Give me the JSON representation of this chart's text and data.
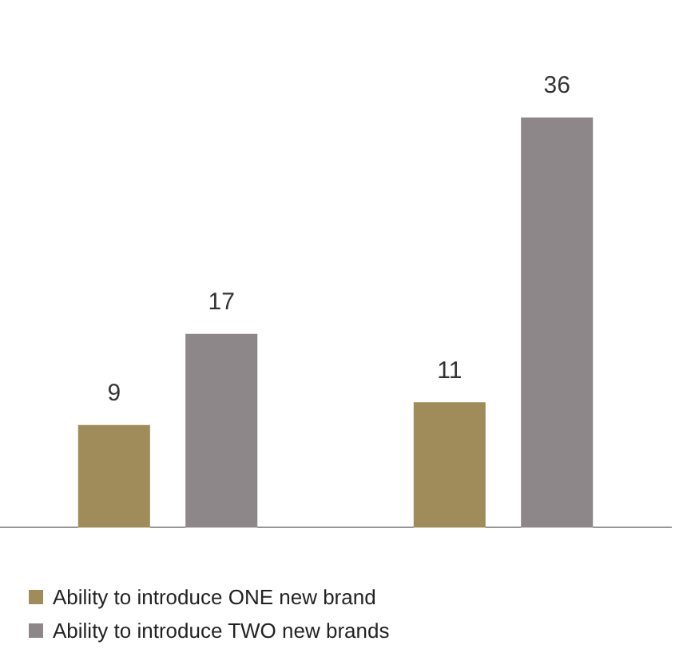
{
  "chart_data": {
    "type": "bar",
    "categories": [
      null,
      null
    ],
    "series": [
      {
        "name": "Ability to introduce ONE new brand",
        "color": "#a08c5a",
        "values": [
          9,
          11
        ]
      },
      {
        "name": "Ability to introduce TWO new brands",
        "color": "#8e8789",
        "values": [
          17,
          36
        ]
      }
    ],
    "data_labels": true,
    "legend": "bottom",
    "grid": false
  }
}
